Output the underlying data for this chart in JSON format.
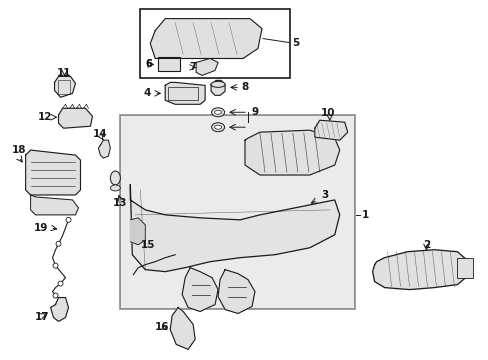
{
  "bg_color": "#ffffff",
  "line_color": "#1a1a1a",
  "gray_fill": "#cccccc",
  "light_gray": "#e0e0e0",
  "dot_fill": "#d8d8d8",
  "fig_width": 4.89,
  "fig_height": 3.6,
  "dpi": 100
}
